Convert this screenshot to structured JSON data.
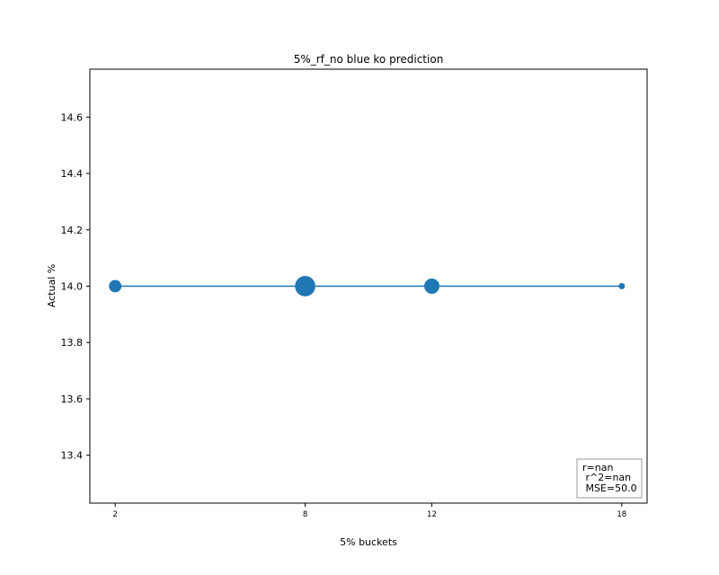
{
  "chart_data": {
    "type": "line",
    "title": "5%_rf_no blue ko prediction",
    "xlabel": "5% buckets",
    "ylabel": "Actual %",
    "x": [
      2,
      8,
      12,
      18
    ],
    "xticks": [
      "2",
      "8",
      "12",
      "18"
    ],
    "xlim": [
      1.2,
      18.8
    ],
    "ylim": [
      13.23,
      14.77
    ],
    "yticks": [
      "13.4",
      "13.6",
      "13.8",
      "14.0",
      "14.2",
      "14.4",
      "14.6"
    ],
    "ytick_values": [
      13.4,
      13.6,
      13.8,
      14.0,
      14.2,
      14.4,
      14.6
    ],
    "series": [
      {
        "values": [
          14.0,
          14.0,
          14.0,
          14.0
        ],
        "marker_weights": [
          12,
          32,
          18,
          3
        ],
        "color": "#1f77b4"
      }
    ],
    "grid": false,
    "stats_box": {
      "position": "bottom-right",
      "lines": [
        "r=nan",
        " r^2=nan",
        " MSE=50.0"
      ]
    }
  }
}
